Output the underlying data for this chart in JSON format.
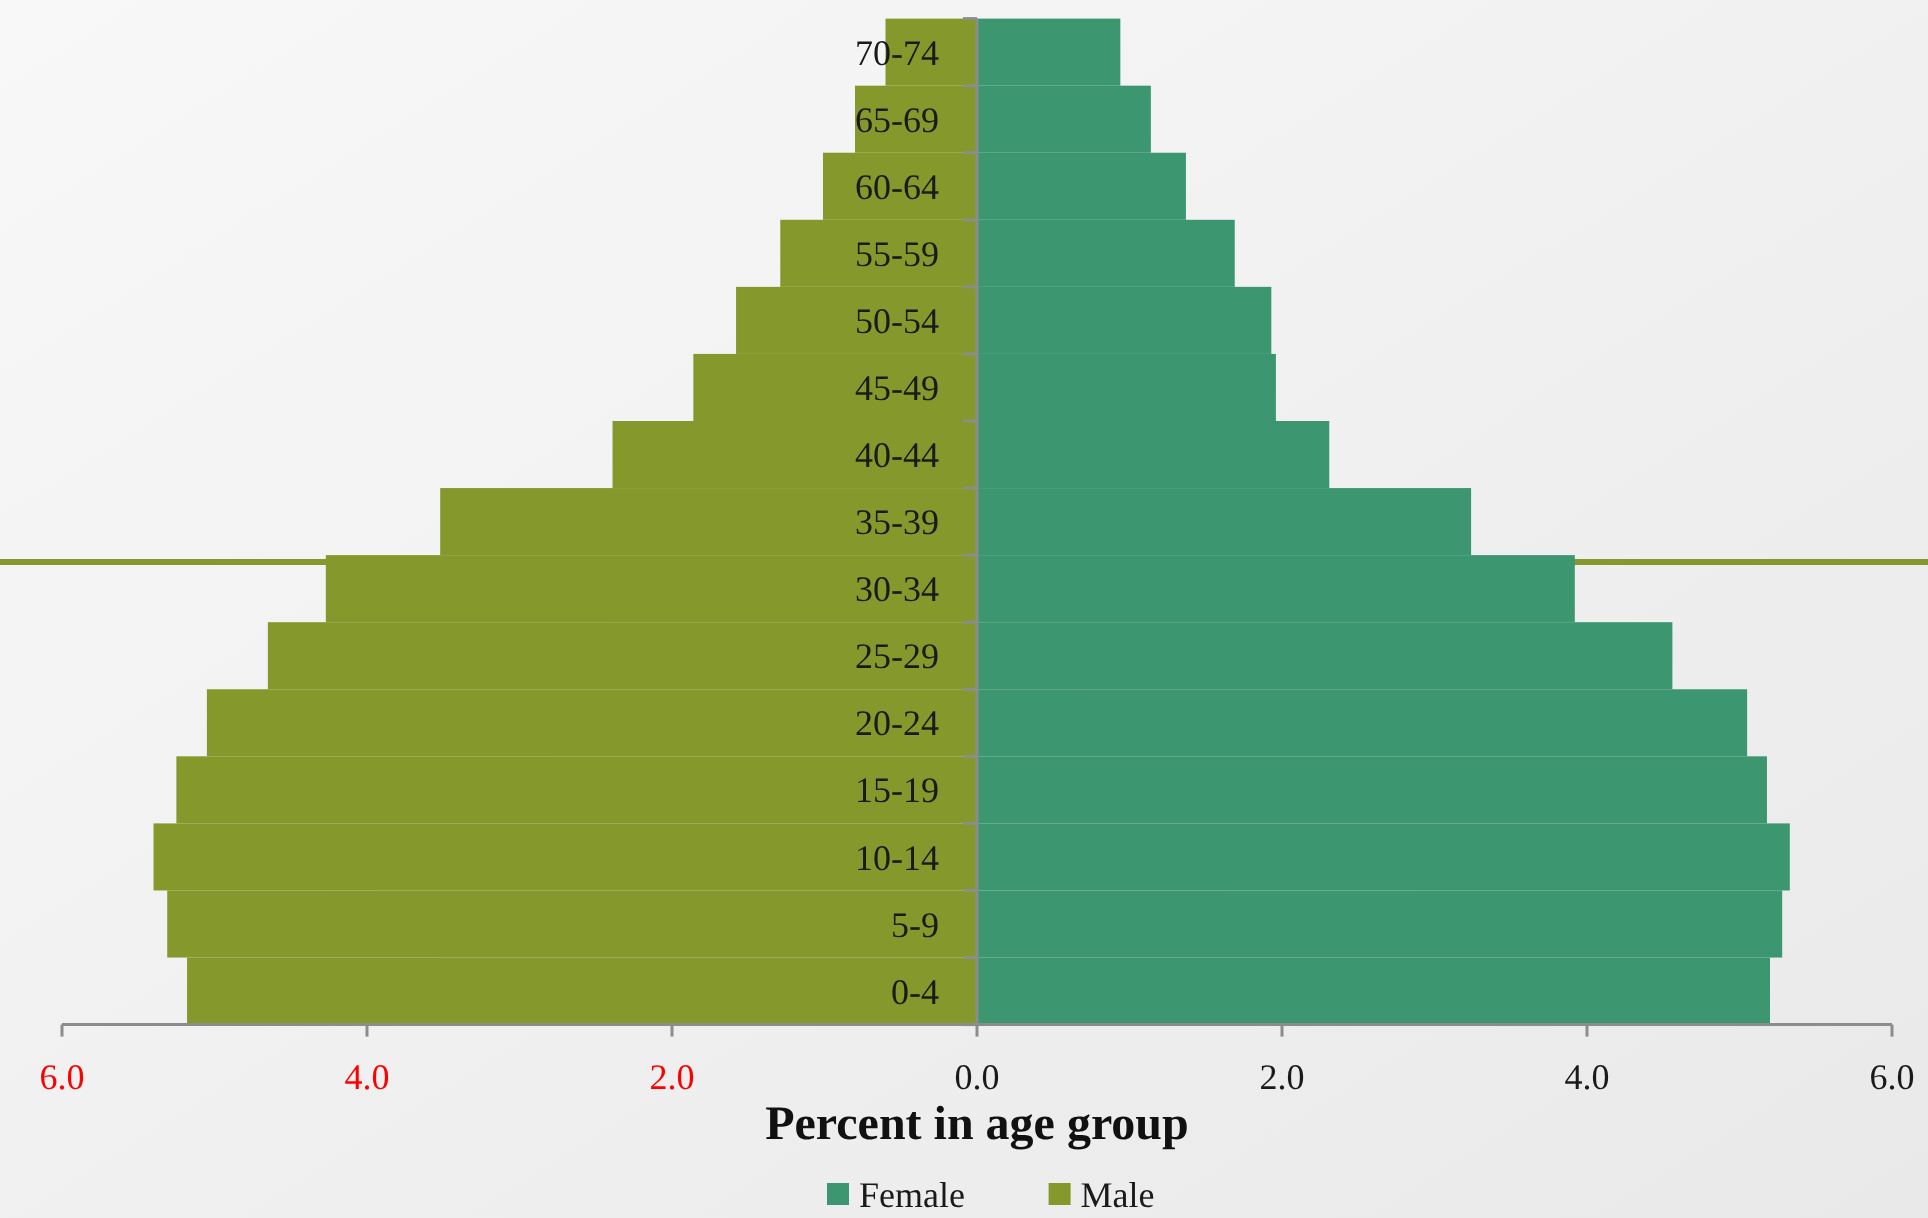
{
  "chart_data": {
    "type": "bar",
    "orientation": "horizontal",
    "stacked": true,
    "categories": [
      "70-74",
      "65-69",
      "60-64",
      "55-59",
      "50-54",
      "45-49",
      "40-44",
      "35-39",
      "30-34",
      "25-29",
      "20-24",
      "15-19",
      "10-14",
      "5-9",
      "0-4"
    ],
    "series": [
      {
        "name": "Female",
        "color": "#3c9670",
        "values": [
          0.94,
          1.14,
          1.37,
          1.69,
          1.93,
          1.96,
          2.31,
          3.24,
          3.92,
          4.56,
          5.05,
          5.18,
          5.33,
          5.28,
          5.2
        ]
      },
      {
        "name": "Male",
        "color": "#84982c",
        "values": [
          -0.6,
          -0.8,
          -1.01,
          -1.29,
          -1.58,
          -1.86,
          -2.39,
          -3.52,
          -4.27,
          -4.65,
          -5.05,
          -5.25,
          -5.4,
          -5.31,
          -5.18
        ]
      }
    ],
    "xlim": [
      -6,
      6
    ],
    "xticks": [
      {
        "value": -6,
        "label": "6.0"
      },
      {
        "value": -4,
        "label": "4.0"
      },
      {
        "value": -2,
        "label": "2.0"
      },
      {
        "value": 0,
        "label": "0.0"
      },
      {
        "value": 2,
        "label": "2.0"
      },
      {
        "value": 4,
        "label": "4.0"
      },
      {
        "value": 6,
        "label": "6.0"
      }
    ],
    "xlabel": "Percent in age group",
    "legend": "bottom"
  }
}
